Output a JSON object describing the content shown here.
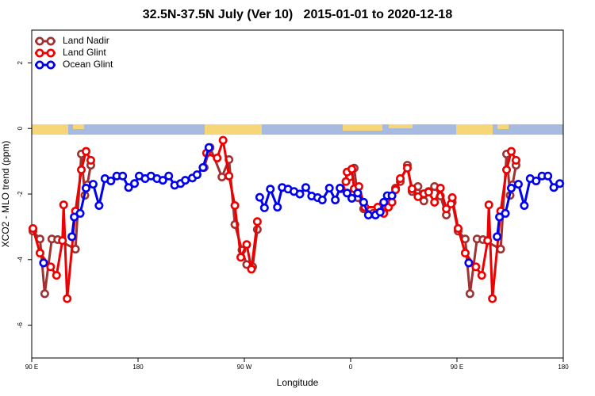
{
  "chart_data": {
    "type": "line",
    "title": "32.5N-37.5N July (Ver 10)   2015-01-01 to 2020-12-18",
    "xlabel": "Longitude",
    "ylabel": "XCO2 - MLO trend (ppm)",
    "xlim": [
      90,
      540
    ],
    "xticks": [
      {
        "value": 90,
        "label": "90 E"
      },
      180,
      {
        "value": 270,
        "label": "90 W"
      },
      {
        "value": 360,
        "label": "0"
      },
      {
        "value": 450,
        "label": "90 E"
      },
      {
        "value": 540,
        "label": "180"
      }
    ],
    "ylim": [
      -7,
      3
    ],
    "yticks": [
      -6,
      -4,
      -2,
      0,
      2
    ],
    "legend": "top-left",
    "series": [
      {
        "name": "Land Nadir",
        "color": "#a03232",
        "x": [
          91,
          97,
          101,
          107,
          112,
          127,
          132,
          135,
          137,
          140,
          null,
          236,
          241,
          251,
          257,
          262,
          268,
          272,
          277,
          281,
          null,
          359,
          363,
          366,
          371,
          379,
          385,
          388,
          393,
          398,
          402,
          408,
          412,
          417,
          422,
          426,
          431,
          436,
          441,
          446,
          451,
          457,
          461,
          467,
          472,
          487,
          492,
          495,
          497,
          500
        ],
        "values": [
          -3.13,
          -3.37,
          -5.04,
          -3.37,
          -3.39,
          -3.68,
          -0.78,
          -2.04,
          -1.72,
          -1.12,
          null,
          -1.19,
          -0.58,
          -1.48,
          -0.95,
          -2.93,
          -3.71,
          -4.15,
          -4.22,
          -3.08,
          null,
          -1.48,
          -1.21,
          -2.11,
          -2.45,
          -2.59,
          -2.47,
          -2.57,
          -2.23,
          -1.82,
          -1.62,
          -1.12,
          -1.92,
          -1.77,
          -2.21,
          -1.92,
          -1.77,
          -2.06,
          -2.64,
          -2.25,
          -3.13,
          -3.37,
          -5.04,
          -3.37,
          -3.39,
          -3.68,
          -0.78,
          -2.04,
          -1.72,
          -1.12
        ]
      },
      {
        "name": "Land Glint",
        "color": "#ee0000",
        "x": [
          91,
          97,
          106,
          111,
          116,
          117,
          120,
          127,
          132,
          136,
          140,
          null,
          238,
          247,
          252,
          257,
          262,
          267,
          272,
          276,
          281,
          null,
          352,
          356,
          357,
          361,
          363,
          367,
          372,
          383,
          388,
          392,
          395,
          398,
          402,
          408,
          412,
          417,
          422,
          426,
          431,
          436,
          441,
          445,
          446,
          451,
          457,
          466,
          471,
          476,
          477,
          480,
          487,
          492,
          496,
          500
        ],
        "values": [
          -3.05,
          -3.8,
          -4.22,
          -4.48,
          -3.42,
          -2.33,
          -5.19,
          -2.52,
          -1.26,
          -0.7,
          -0.97,
          null,
          -0.75,
          -0.9,
          -0.36,
          -1.45,
          -2.35,
          -3.93,
          -3.54,
          -4.29,
          -2.84,
          null,
          -1.84,
          -1.62,
          -1.33,
          -1.24,
          -1.84,
          -1.77,
          -2.4,
          -2.4,
          -2.59,
          -2.4,
          -2.25,
          -1.87,
          -1.53,
          -1.21,
          -1.84,
          -2.08,
          -1.99,
          -1.94,
          -2.25,
          -1.82,
          -2.45,
          -2.3,
          -2.11,
          -3.05,
          -3.8,
          -4.22,
          -4.48,
          -3.42,
          -2.33,
          -5.19,
          -2.52,
          -1.26,
          -0.7,
          -0.97
        ]
      },
      {
        "name": "Ocean Glint",
        "color": "#0000ee",
        "x": [
          100,
          null,
          124,
          126,
          131,
          136,
          142,
          147,
          152,
          157,
          162,
          167,
          172,
          177,
          181,
          186,
          191,
          196,
          201,
          206,
          211,
          216,
          220,
          226,
          230,
          235,
          240,
          null,
          283,
          287,
          292,
          298,
          302,
          307,
          312,
          317,
          322,
          327,
          332,
          336,
          342,
          347,
          351,
          357,
          361,
          366,
          371,
          375,
          381,
          385,
          388,
          391,
          395,
          null,
          460,
          null,
          484,
          486,
          491,
          496,
          502,
          507,
          512,
          517,
          522,
          527,
          532,
          537
        ],
        "values": [
          -4.1,
          null,
          -3.3,
          -2.7,
          -2.59,
          -1.82,
          -1.7,
          -2.35,
          -1.53,
          -1.6,
          -1.45,
          -1.45,
          -1.8,
          -1.68,
          -1.45,
          -1.53,
          -1.45,
          -1.53,
          -1.58,
          -1.45,
          -1.73,
          -1.68,
          -1.58,
          -1.51,
          -1.41,
          -1.19,
          -0.58,
          null,
          -2.1,
          -2.42,
          -1.85,
          -2.4,
          -1.8,
          -1.85,
          -1.92,
          -2.0,
          -1.8,
          -2.06,
          -2.11,
          -2.18,
          -1.82,
          -2.18,
          -1.82,
          -1.97,
          -2.13,
          -1.97,
          -2.25,
          -2.64,
          -2.64,
          -2.55,
          -2.25,
          -2.05,
          -2.05,
          null,
          -4.1,
          null,
          -3.3,
          -2.7,
          -2.59,
          -1.82,
          -1.7,
          -2.35,
          -1.53,
          -1.6,
          -1.45,
          -1.45,
          -1.8,
          -1.68
        ]
      }
    ]
  }
}
